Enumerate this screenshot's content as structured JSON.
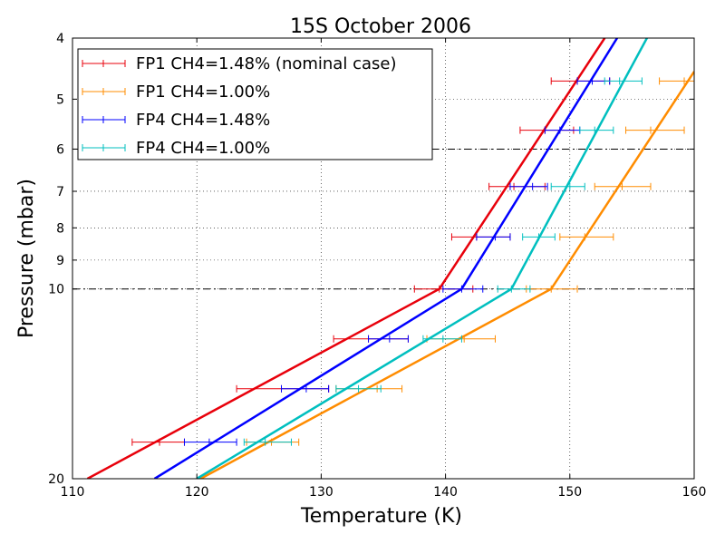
{
  "chart_data": {
    "type": "line",
    "title": "15S October 2006",
    "xlabel": "Temperature (K)",
    "ylabel": "Pressure (mbar)",
    "xlim": [
      110,
      160
    ],
    "ylim": [
      4,
      20
    ],
    "yscale": "log",
    "y_inverted": true,
    "grid": true,
    "legend_position": "top-left",
    "xticks": [
      110,
      120,
      130,
      140,
      150,
      160
    ],
    "yticks": [
      4,
      5,
      6,
      7,
      8,
      9,
      10,
      20
    ],
    "reference_lines": [
      {
        "y": 6,
        "style": "dash-dot"
      },
      {
        "y": 10,
        "style": "dash-dot"
      }
    ],
    "series": [
      {
        "name": "FP1 CH4=1.48% (nominal case)",
        "color": "#e8000b",
        "line_points": [
          [
            152.8,
            4.0
          ],
          [
            139.5,
            10.0
          ],
          [
            111.2,
            20.0
          ]
        ],
        "errorbars": [
          {
            "y": 4.68,
            "lo": 148.5,
            "mid": 150.6,
            "hi": 153.2
          },
          {
            "y": 5.6,
            "lo": 146.0,
            "mid": 148.0,
            "hi": 150.3
          },
          {
            "y": 6.88,
            "lo": 143.5,
            "mid": 145.5,
            "hi": 148.0
          },
          {
            "y": 8.27,
            "lo": 140.5,
            "mid": 142.5,
            "hi": 145.2
          },
          {
            "y": 10.0,
            "lo": 137.5,
            "mid": 139.5,
            "hi": 142.2
          },
          {
            "y": 12.0,
            "lo": 131.0,
            "mid": 133.8,
            "hi": 137.0
          },
          {
            "y": 14.4,
            "lo": 123.2,
            "mid": 126.8,
            "hi": 130.6
          },
          {
            "y": 17.5,
            "lo": 114.8,
            "mid": 117.0,
            "hi": 119.0
          }
        ]
      },
      {
        "name": "FP1 CH4=1.00%",
        "color": "#ff8c00",
        "line_points": [
          [
            160.0,
            4.52
          ],
          [
            148.5,
            10.0
          ],
          [
            120.3,
            20.0
          ]
        ],
        "errorbars": [
          {
            "y": 4.68,
            "lo": 157.2,
            "mid": 159.2,
            "hi": 160.0
          },
          {
            "y": 5.6,
            "lo": 154.5,
            "mid": 156.5,
            "hi": 159.2
          },
          {
            "y": 6.88,
            "lo": 152.0,
            "mid": 154.2,
            "hi": 156.5
          },
          {
            "y": 8.27,
            "lo": 149.2,
            "mid": 151.2,
            "hi": 153.5
          },
          {
            "y": 10.0,
            "lo": 146.5,
            "mid": 148.5,
            "hi": 150.6
          },
          {
            "y": 12.0,
            "lo": 138.5,
            "mid": 141.5,
            "hi": 144.0
          },
          {
            "y": 14.4,
            "lo": 131.2,
            "mid": 134.5,
            "hi": 136.5
          },
          {
            "y": 17.5,
            "lo": 124.0,
            "mid": 126.0,
            "hi": 128.2
          }
        ]
      },
      {
        "name": "FP4 CH4=1.48%",
        "color": "#0000ff",
        "line_points": [
          [
            153.8,
            4.0
          ],
          [
            141.3,
            10.0
          ],
          [
            116.6,
            20.0
          ]
        ],
        "errorbars": [
          {
            "y": 4.68,
            "lo": 150.6,
            "mid": 151.8,
            "hi": 153.2
          },
          {
            "y": 5.6,
            "lo": 148.0,
            "mid": 149.2,
            "hi": 150.8
          },
          {
            "y": 6.88,
            "lo": 145.2,
            "mid": 147.0,
            "hi": 148.2
          },
          {
            "y": 8.27,
            "lo": 142.5,
            "mid": 144.0,
            "hi": 145.2
          },
          {
            "y": 10.0,
            "lo": 139.8,
            "mid": 141.3,
            "hi": 143.0
          },
          {
            "y": 12.0,
            "lo": 133.8,
            "mid": 135.5,
            "hi": 137.0
          },
          {
            "y": 14.4,
            "lo": 126.8,
            "mid": 128.8,
            "hi": 130.6
          },
          {
            "y": 17.5,
            "lo": 119.0,
            "mid": 121.0,
            "hi": 123.2
          }
        ]
      },
      {
        "name": "FP4 CH4=1.00%",
        "color": "#00bfbf",
        "line_points": [
          [
            156.2,
            4.0
          ],
          [
            145.3,
            10.0
          ],
          [
            120.0,
            20.0
          ]
        ],
        "errorbars": [
          {
            "y": 4.68,
            "lo": 152.8,
            "mid": 154.0,
            "hi": 155.8
          },
          {
            "y": 5.6,
            "lo": 150.8,
            "mid": 152.0,
            "hi": 153.5
          },
          {
            "y": 6.88,
            "lo": 148.5,
            "mid": 150.0,
            "hi": 151.2
          },
          {
            "y": 8.27,
            "lo": 146.2,
            "mid": 147.5,
            "hi": 148.8
          },
          {
            "y": 10.0,
            "lo": 144.2,
            "mid": 145.3,
            "hi": 146.8
          },
          {
            "y": 12.0,
            "lo": 138.2,
            "mid": 139.8,
            "hi": 141.3
          },
          {
            "y": 14.4,
            "lo": 131.2,
            "mid": 133.0,
            "hi": 134.8
          },
          {
            "y": 17.5,
            "lo": 123.8,
            "mid": 125.5,
            "hi": 127.6
          }
        ]
      }
    ]
  }
}
